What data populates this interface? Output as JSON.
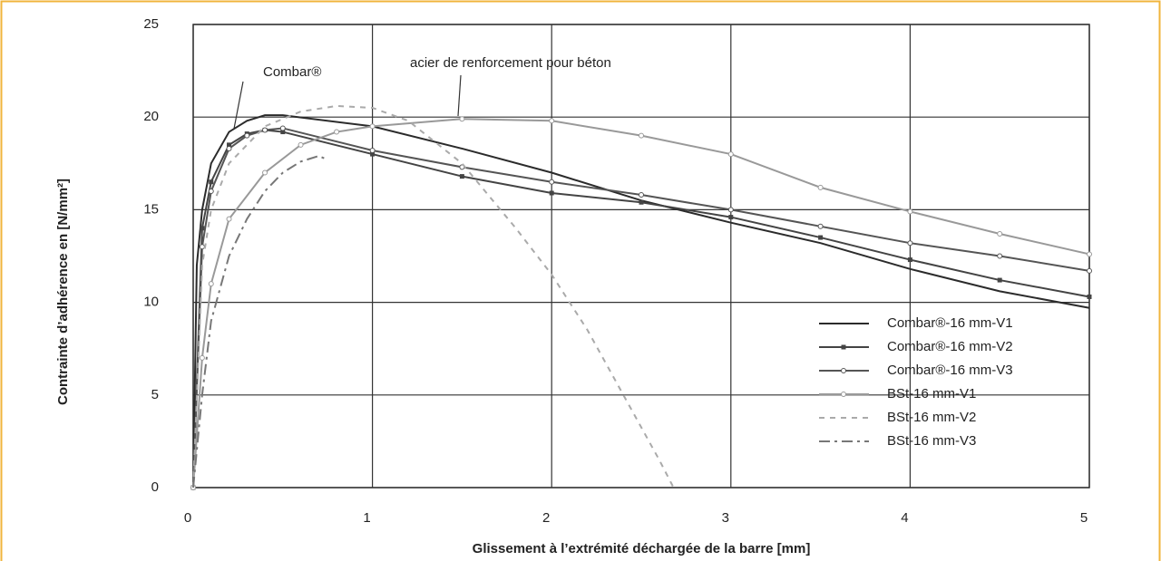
{
  "chart_data": {
    "type": "line",
    "x_label": "Glissement à l’extrémité déchargée de la barre [mm]",
    "y_label": "Contrainte d’adhérence en [N/mm²]",
    "annotations": [
      "Combar®",
      "acier de renforcement pour béton"
    ],
    "xlim": [
      0,
      5
    ],
    "xticks": [
      0,
      1,
      2,
      3,
      4,
      5
    ],
    "ylim": [
      0,
      25
    ],
    "yticks": [
      0,
      5,
      10,
      15,
      20,
      25
    ],
    "grid": true,
    "legend": "right",
    "series": [
      {
        "name": "Combar®-16 mm-V1",
        "color": "#2b2b2b",
        "dash": "solid",
        "marker": "none",
        "x": [
          0,
          0.02,
          0.05,
          0.1,
          0.2,
          0.3,
          0.4,
          0.5,
          1,
          1.5,
          2,
          2.5,
          3,
          3.5,
          4,
          4.5,
          5
        ],
        "values": [
          0,
          12,
          15,
          17.5,
          19.2,
          19.8,
          20.1,
          20.1,
          19.5,
          18.3,
          17,
          15.5,
          14.3,
          13.2,
          11.8,
          10.6,
          9.7
        ]
      },
      {
        "name": "Combar®-16 mm-V2",
        "color": "#444444",
        "dash": "solid",
        "marker": "square",
        "x": [
          0,
          0.05,
          0.1,
          0.2,
          0.3,
          0.4,
          0.5,
          1,
          1.5,
          2,
          2.5,
          3,
          3.5,
          4,
          4.5,
          5
        ],
        "values": [
          0,
          14,
          16.5,
          18.5,
          19.1,
          19.3,
          19.2,
          18,
          16.8,
          15.9,
          15.4,
          14.6,
          13.5,
          12.3,
          11.2,
          10.3
        ]
      },
      {
        "name": "Combar®-16 mm-V3",
        "color": "#555555",
        "dash": "solid",
        "marker": "circle",
        "x": [
          0,
          0.05,
          0.1,
          0.2,
          0.3,
          0.4,
          0.5,
          1,
          1.5,
          2,
          2.5,
          3,
          3.5,
          4,
          4.5,
          5
        ],
        "values": [
          0,
          13,
          16,
          18.3,
          19,
          19.3,
          19.4,
          18.2,
          17.3,
          16.5,
          15.8,
          15,
          14.1,
          13.2,
          12.5,
          11.7
        ]
      },
      {
        "name": "BSt-16 mm-V1",
        "color": "#999999",
        "dash": "solid",
        "marker": "circle",
        "x": [
          0,
          0.05,
          0.1,
          0.2,
          0.4,
          0.6,
          0.8,
          1,
          1.5,
          2,
          2.5,
          3,
          3.5,
          4,
          4.5,
          5
        ],
        "values": [
          0,
          7,
          11,
          14.5,
          17,
          18.5,
          19.2,
          19.5,
          19.9,
          19.8,
          19,
          18,
          16.2,
          14.9,
          13.7,
          12.6
        ]
      },
      {
        "name": "BSt-16 mm-V2",
        "color": "#aaaaaa",
        "dash": "dashed",
        "marker": "none",
        "x": [
          0,
          0.05,
          0.1,
          0.2,
          0.4,
          0.6,
          0.8,
          1,
          1.2,
          1.5,
          1.8,
          2,
          2.2,
          2.4,
          2.6,
          2.68
        ],
        "values": [
          0,
          12,
          15,
          17.5,
          19.5,
          20.3,
          20.6,
          20.5,
          19.8,
          17.5,
          14,
          11.5,
          8.5,
          5,
          1.5,
          0
        ]
      },
      {
        "name": "BSt-16 mm-V3",
        "color": "#777777",
        "dash": "dashdot",
        "marker": "none",
        "x": [
          0,
          0.05,
          0.1,
          0.2,
          0.3,
          0.4,
          0.5,
          0.6,
          0.7,
          0.75
        ],
        "values": [
          0,
          5,
          9,
          12.5,
          14.5,
          16,
          17,
          17.6,
          17.9,
          17.7
        ]
      }
    ]
  }
}
